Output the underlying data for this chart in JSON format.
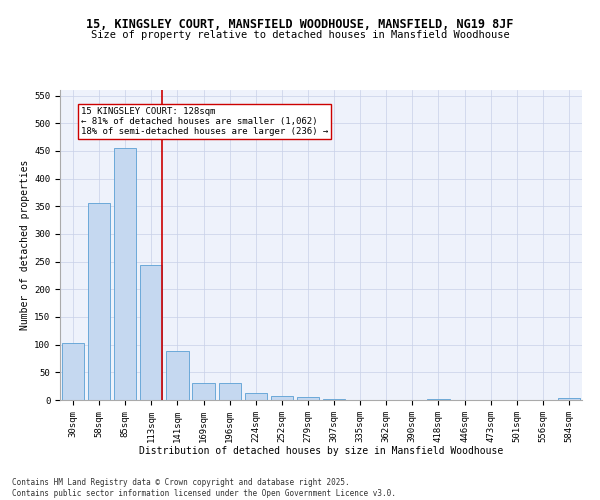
{
  "title": "15, KINGSLEY COURT, MANSFIELD WOODHOUSE, MANSFIELD, NG19 8JF",
  "subtitle": "Size of property relative to detached houses in Mansfield Woodhouse",
  "xlabel": "Distribution of detached houses by size in Mansfield Woodhouse",
  "ylabel": "Number of detached properties",
  "categories": [
    "30sqm",
    "58sqm",
    "85sqm",
    "113sqm",
    "141sqm",
    "169sqm",
    "196sqm",
    "224sqm",
    "252sqm",
    "279sqm",
    "307sqm",
    "335sqm",
    "362sqm",
    "390sqm",
    "418sqm",
    "446sqm",
    "473sqm",
    "501sqm",
    "556sqm",
    "584sqm"
  ],
  "values": [
    103,
    356,
    455,
    243,
    88,
    30,
    30,
    13,
    8,
    5,
    1,
    0,
    0,
    0,
    1,
    0,
    0,
    0,
    0,
    3
  ],
  "bar_color": "#c5d8f0",
  "bar_edge_color": "#5a9fd4",
  "vline_x_index": 3,
  "vline_color": "#cc0000",
  "annotation_text": "15 KINGSLEY COURT: 128sqm\n← 81% of detached houses are smaller (1,062)\n18% of semi-detached houses are larger (236) →",
  "annotation_box_color": "#ffffff",
  "annotation_box_edge_color": "#cc0000",
  "footer": "Contains HM Land Registry data © Crown copyright and database right 2025.\nContains public sector information licensed under the Open Government Licence v3.0.",
  "ylim": [
    0,
    560
  ],
  "yticks": [
    0,
    50,
    100,
    150,
    200,
    250,
    300,
    350,
    400,
    450,
    500,
    550
  ],
  "background_color": "#eef2fb",
  "grid_color": "#c8d0e8",
  "title_fontsize": 8.5,
  "subtitle_fontsize": 7.5,
  "axis_label_fontsize": 7,
  "tick_fontsize": 6.5,
  "annotation_fontsize": 6.5,
  "footer_fontsize": 5.5
}
